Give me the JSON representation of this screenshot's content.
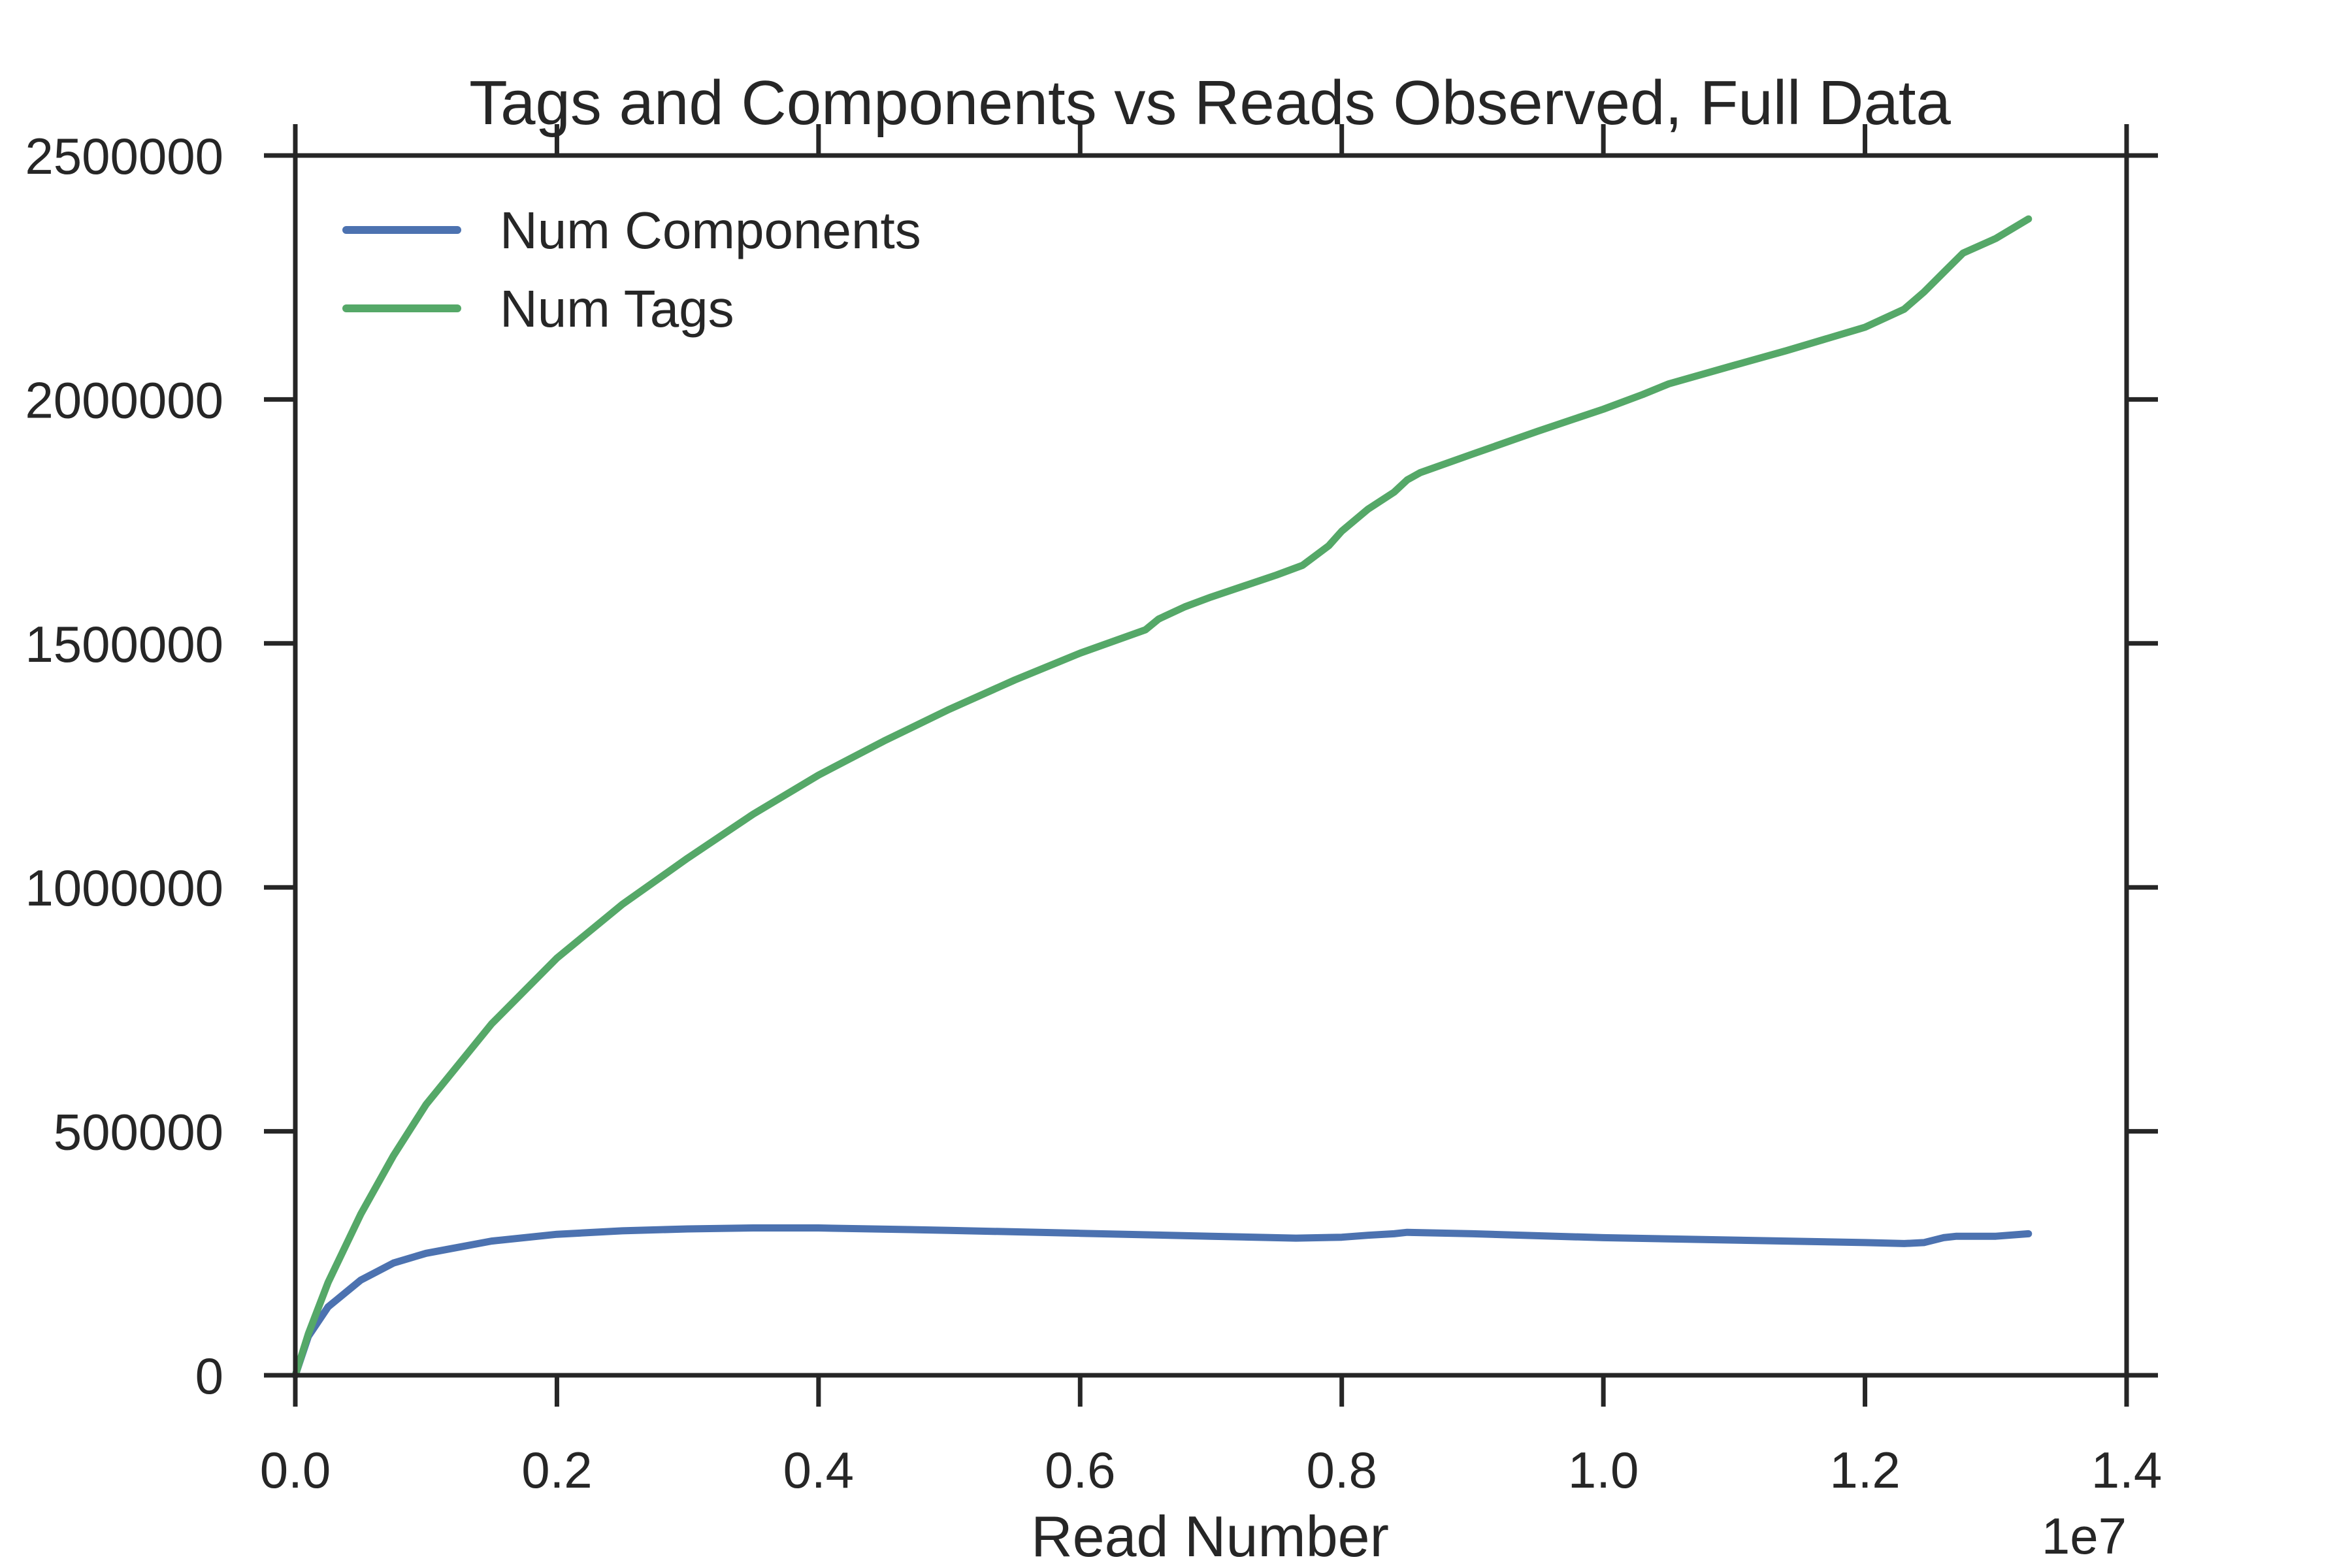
{
  "chart_data": {
    "type": "line",
    "title": "Tags and Components vs Reads Observed, Full Data",
    "xlabel": "Read Number",
    "ylabel": "",
    "x_offset_label": "1e7",
    "xlim": [
      0,
      14000000
    ],
    "ylim": [
      0,
      2500000
    ],
    "xticks": [
      0,
      2000000,
      4000000,
      6000000,
      8000000,
      10000000,
      12000000,
      14000000
    ],
    "xtick_labels": [
      "0.0",
      "0.2",
      "0.4",
      "0.6",
      "0.8",
      "1.0",
      "1.2",
      "1.4"
    ],
    "yticks": [
      0,
      500000,
      1000000,
      1500000,
      2000000,
      2500000
    ],
    "ytick_labels": [
      "0",
      "500000",
      "1000000",
      "1500000",
      "2000000",
      "2500000"
    ],
    "grid": false,
    "legend_position": "top-left",
    "series": [
      {
        "name": "Num Components",
        "color": "#4c72b0",
        "x": [
          0,
          100000,
          250000,
          500000,
          750000,
          1000000,
          1500000,
          2000000,
          2500000,
          3000000,
          3500000,
          4000000,
          5000000,
          6000000,
          7000000,
          7650000,
          8000000,
          8200000,
          8400000,
          8500000,
          9000000,
          10000000,
          11000000,
          12000000,
          12300000,
          12450000,
          12600000,
          12700000,
          13000000,
          13250000
        ],
        "y": [
          0,
          80000,
          140000,
          195000,
          230000,
          250000,
          275000,
          289000,
          296000,
          300000,
          302000,
          302000,
          297000,
          291000,
          285000,
          281000,
          283000,
          287000,
          290000,
          293000,
          290000,
          282000,
          277000,
          272000,
          270000,
          272000,
          282000,
          285000,
          285000,
          290000
        ]
      },
      {
        "name": "Num Tags",
        "color": "#55a868",
        "x": [
          0,
          100000,
          250000,
          500000,
          750000,
          1000000,
          1500000,
          2000000,
          2500000,
          3000000,
          3500000,
          4000000,
          4500000,
          5000000,
          5500000,
          6000000,
          6500000,
          6600000,
          6800000,
          7000000,
          7500000,
          7700000,
          7900000,
          8000000,
          8200000,
          8400000,
          8500000,
          8600000,
          9000000,
          9500000,
          10000000,
          10300000,
          10500000,
          11000000,
          11400000,
          12000000,
          12300000,
          12450000,
          12600000,
          12750000,
          13000000,
          13250000
        ],
        "y": [
          0,
          85000,
          190000,
          330000,
          450000,
          555000,
          720000,
          855000,
          965000,
          1060000,
          1150000,
          1230000,
          1300000,
          1365000,
          1425000,
          1480000,
          1528000,
          1550000,
          1575000,
          1595000,
          1640000,
          1660000,
          1700000,
          1730000,
          1775000,
          1810000,
          1835000,
          1850000,
          1888000,
          1935000,
          1980000,
          2010000,
          2032000,
          2070000,
          2100000,
          2148000,
          2185000,
          2220000,
          2260000,
          2300000,
          2330000,
          2370000
        ]
      }
    ]
  }
}
